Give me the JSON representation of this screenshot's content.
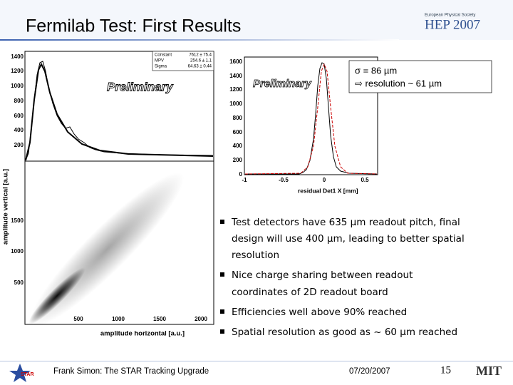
{
  "header": {
    "title": "Fermilab Test: First Results",
    "logo_society": "European Physical Society",
    "logo_name": "HEP 2007"
  },
  "plot_landau": {
    "yticks": [
      1400,
      1200,
      1000,
      800,
      600,
      400,
      200
    ],
    "stats": [
      [
        "Constant",
        "7612 ± 75.4"
      ],
      [
        "MPV",
        "254.6 ± 1.1"
      ],
      [
        "Sigma",
        "64.63 ± 0.44"
      ]
    ],
    "stamp": "Preliminary"
  },
  "plot_scatter": {
    "yticks": [
      1500,
      1000,
      500
    ],
    "xticks": [
      500,
      1000,
      1500,
      2000
    ],
    "xlabel": "amplitude horizontal [a.u.]",
    "ylabel": "amplitude vertical [a.u.]"
  },
  "plot_residual": {
    "yticks": [
      1600,
      1400,
      1200,
      1000,
      800,
      600,
      400,
      200,
      0
    ],
    "xticks": [
      -1,
      -0.5,
      0,
      0.5
    ],
    "xlabel": "residual Det1 X [mm]",
    "stamp": "Preliminary",
    "legend": [
      "σ = 86 µm",
      "⇨ resolution ~ 61 µm"
    ]
  },
  "bullets": [
    {
      "lines": [
        "Test detectors have 635 µm readout pitch, final",
        "design will use 400 µm, leading to better spatial",
        "resolution"
      ]
    },
    {
      "lines": [
        "Nice charge sharing between readout",
        "coordinates of 2D readout board"
      ]
    },
    {
      "lines": [
        "Efficiencies well above 90% reached"
      ]
    },
    {
      "lines": [
        "Spatial resolution as good as ~ 60 µm reached"
      ]
    }
  ],
  "footer": {
    "author": "Frank Simon: The STAR Tracking Upgrade",
    "date": "07/20/2007",
    "page": "15",
    "left_logo": "STAR",
    "right_logo": "MIT"
  }
}
